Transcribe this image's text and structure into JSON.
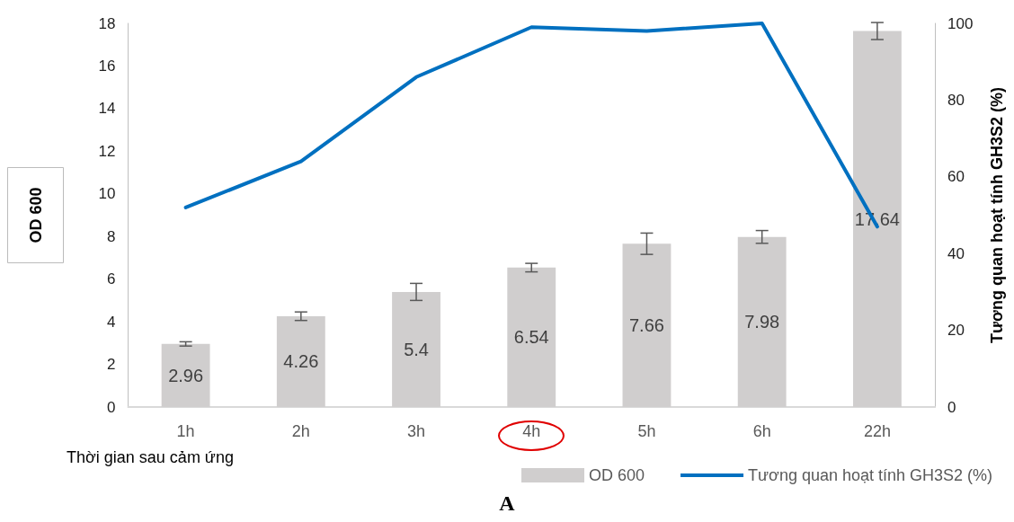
{
  "chart_data": {
    "type": "bar",
    "xlabel": "Thời gian sau cảm ứng",
    "ylabel": "OD 600",
    "y2label": "Tương quan hoạt tính GH3S2 (%)",
    "annotations": [
      "A"
    ],
    "categories": [
      "1h",
      "2h",
      "3h",
      "4h",
      "5h",
      "6h",
      "22h"
    ],
    "series": [
      {
        "name": "OD 600",
        "color": "#d0cece",
        "values": [
          2.96,
          4.26,
          5.4,
          6.54,
          7.66,
          7.98,
          17.64
        ],
        "errors": [
          0.1,
          0.2,
          0.4,
          0.2,
          0.5,
          0.3,
          0.4
        ],
        "value_labels": [
          "2.96",
          "4.26",
          "5.4",
          "6.54",
          "7.66",
          "7.98",
          "17.64"
        ]
      },
      {
        "name": "Tương quan hoạt tính GH3S2 (%)",
        "type": "line",
        "axis": "y2",
        "color": "#0070c0",
        "values": [
          52,
          64,
          86,
          99,
          98,
          100,
          47
        ]
      }
    ],
    "ylim": [
      0,
      18
    ],
    "yticks": [
      0,
      2,
      4,
      6,
      8,
      10,
      12,
      14,
      16,
      18
    ],
    "y2lim": [
      0,
      100
    ],
    "y2ticks": [
      0,
      20,
      40,
      60,
      80,
      100
    ],
    "grid": false,
    "legend": "bottom",
    "marker": "none",
    "line_style": "solid"
  }
}
